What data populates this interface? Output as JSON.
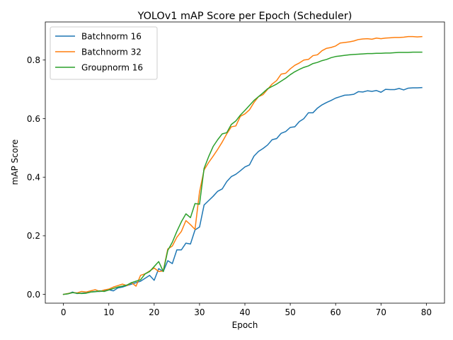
{
  "chart_data": {
    "type": "line",
    "title": "YOLOv1 mAP Score per Epoch (Scheduler)",
    "xlabel": "Epoch",
    "ylabel": "mAP Score",
    "xlim": [
      -4,
      84
    ],
    "ylim": [
      -0.03,
      0.93
    ],
    "xticks": [
      0,
      10,
      20,
      30,
      40,
      50,
      60,
      70,
      80
    ],
    "xtick_labels": [
      "0",
      "10",
      "20",
      "30",
      "40",
      "50",
      "60",
      "70",
      "80"
    ],
    "yticks": [
      0.0,
      0.2,
      0.4,
      0.6,
      0.8
    ],
    "ytick_labels": [
      "0.0",
      "0.2",
      "0.4",
      "0.6",
      "0.8"
    ],
    "grid": false,
    "legend_position": "top-left",
    "x": [
      0,
      1,
      2,
      3,
      4,
      5,
      6,
      7,
      8,
      9,
      10,
      11,
      12,
      13,
      14,
      15,
      16,
      17,
      18,
      19,
      20,
      21,
      22,
      23,
      24,
      25,
      26,
      27,
      28,
      29,
      30,
      31,
      32,
      33,
      34,
      35,
      36,
      37,
      38,
      39,
      40,
      41,
      42,
      43,
      44,
      45,
      46,
      47,
      48,
      49,
      50,
      51,
      52,
      53,
      54,
      55,
      56,
      57,
      58,
      59,
      60,
      61,
      62,
      63,
      64,
      65,
      66,
      67,
      68,
      69,
      70,
      71,
      72,
      73,
      74,
      75,
      76,
      77,
      78,
      79
    ],
    "series": [
      {
        "name": "Batchnorm 16",
        "color": "#1f77b4",
        "values": [
          0.0,
          0.002,
          0.008,
          0.003,
          0.004,
          0.005,
          0.008,
          0.01,
          0.01,
          0.012,
          0.016,
          0.012,
          0.022,
          0.025,
          0.03,
          0.035,
          0.04,
          0.045,
          0.055,
          0.065,
          0.048,
          0.088,
          0.078,
          0.115,
          0.105,
          0.152,
          0.152,
          0.175,
          0.172,
          0.22,
          0.23,
          0.305,
          0.32,
          0.335,
          0.352,
          0.36,
          0.385,
          0.402,
          0.41,
          0.422,
          0.435,
          0.442,
          0.472,
          0.488,
          0.498,
          0.51,
          0.528,
          0.532,
          0.55,
          0.556,
          0.57,
          0.572,
          0.59,
          0.6,
          0.62,
          0.62,
          0.636,
          0.647,
          0.655,
          0.662,
          0.67,
          0.675,
          0.68,
          0.681,
          0.683,
          0.692,
          0.691,
          0.695,
          0.693,
          0.696,
          0.69,
          0.7,
          0.699,
          0.699,
          0.703,
          0.698,
          0.704,
          0.705,
          0.705,
          0.706
        ]
      },
      {
        "name": "Batchnorm 32",
        "color": "#ff7f0e",
        "values": [
          0.0,
          0.003,
          0.006,
          0.005,
          0.01,
          0.008,
          0.012,
          0.016,
          0.01,
          0.015,
          0.018,
          0.025,
          0.03,
          0.035,
          0.03,
          0.04,
          0.028,
          0.065,
          0.07,
          0.08,
          0.09,
          0.078,
          0.08,
          0.155,
          0.165,
          0.195,
          0.215,
          0.252,
          0.238,
          0.222,
          0.35,
          0.425,
          0.45,
          0.472,
          0.495,
          0.52,
          0.548,
          0.572,
          0.575,
          0.608,
          0.616,
          0.63,
          0.655,
          0.675,
          0.682,
          0.7,
          0.718,
          0.73,
          0.752,
          0.755,
          0.77,
          0.782,
          0.79,
          0.8,
          0.802,
          0.815,
          0.818,
          0.832,
          0.84,
          0.843,
          0.848,
          0.858,
          0.86,
          0.862,
          0.865,
          0.87,
          0.872,
          0.873,
          0.871,
          0.875,
          0.873,
          0.875,
          0.876,
          0.877,
          0.877,
          0.878,
          0.88,
          0.88,
          0.879,
          0.88
        ]
      },
      {
        "name": "Groupnorm 16",
        "color": "#2ca02c",
        "values": [
          0.0,
          0.002,
          0.006,
          0.004,
          0.003,
          0.004,
          0.008,
          0.009,
          0.012,
          0.01,
          0.015,
          0.02,
          0.025,
          0.028,
          0.032,
          0.04,
          0.045,
          0.05,
          0.07,
          0.078,
          0.095,
          0.112,
          0.078,
          0.15,
          0.178,
          0.215,
          0.248,
          0.275,
          0.262,
          0.31,
          0.308,
          0.43,
          0.47,
          0.505,
          0.528,
          0.548,
          0.552,
          0.58,
          0.592,
          0.612,
          0.628,
          0.645,
          0.662,
          0.675,
          0.688,
          0.702,
          0.71,
          0.718,
          0.728,
          0.738,
          0.75,
          0.76,
          0.768,
          0.775,
          0.78,
          0.788,
          0.792,
          0.798,
          0.802,
          0.808,
          0.812,
          0.814,
          0.816,
          0.818,
          0.819,
          0.82,
          0.821,
          0.822,
          0.822,
          0.823,
          0.823,
          0.824,
          0.824,
          0.825,
          0.826,
          0.826,
          0.826,
          0.827,
          0.827,
          0.827
        ]
      }
    ]
  }
}
